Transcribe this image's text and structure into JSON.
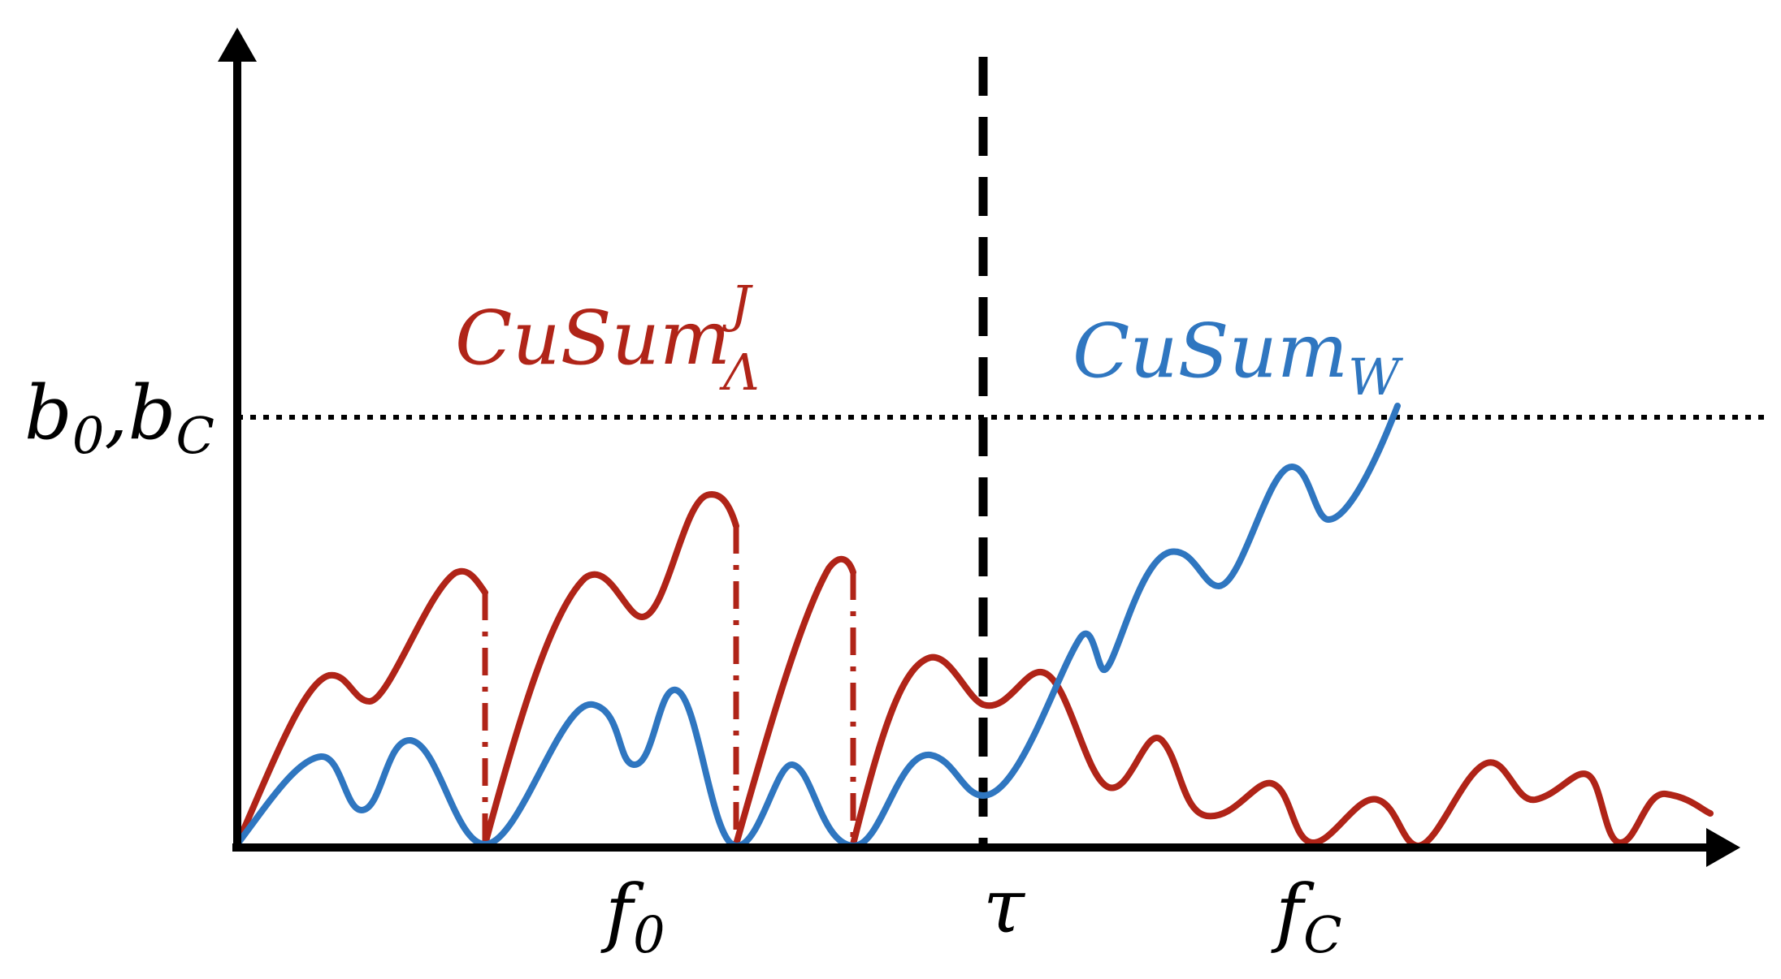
{
  "figure": {
    "y_axis_label": {
      "base": "b",
      "sub1": "0",
      "comma": ",",
      "base2": "b",
      "sub2": "C"
    },
    "x_labels": {
      "f0": {
        "base": "f",
        "sub": "0"
      },
      "tau": {
        "text": "τ"
      },
      "fc": {
        "base": "f",
        "sub": "C"
      }
    },
    "curve_labels": {
      "red": {
        "base": "CuSum",
        "sup": "J",
        "sub": "Λ"
      },
      "blue": {
        "base": "CuSum",
        "sub": "W"
      }
    },
    "colors": {
      "red": "#b02418",
      "blue": "#2f76c0",
      "axis": "#000000"
    }
  }
}
